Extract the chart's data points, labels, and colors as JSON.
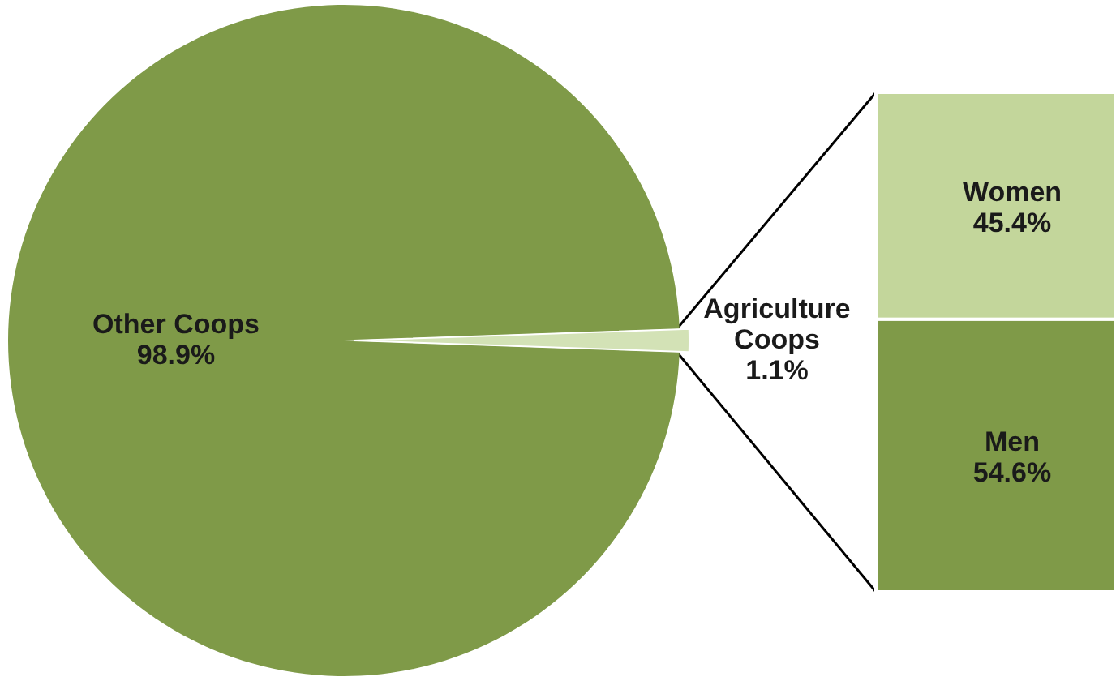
{
  "chart_data": [
    {
      "type": "pie",
      "categories": [
        "Other Coops",
        "Agriculture Coops"
      ],
      "values": [
        98.9,
        1.1
      ],
      "colors": [
        "#7f9a48",
        "#d3e2b6"
      ],
      "value_labels": [
        "98.9%",
        "1.1%"
      ]
    },
    {
      "type": "bar",
      "stacked": true,
      "categories": [
        null
      ],
      "series": [
        {
          "name": "Men",
          "color": "#7f9a48",
          "values": [
            54.6
          ],
          "value_labels": [
            "54.6%"
          ]
        },
        {
          "name": "Women",
          "color": "#c3d69b",
          "values": [
            45.4
          ],
          "value_labels": [
            "45.4%"
          ]
        }
      ]
    }
  ]
}
